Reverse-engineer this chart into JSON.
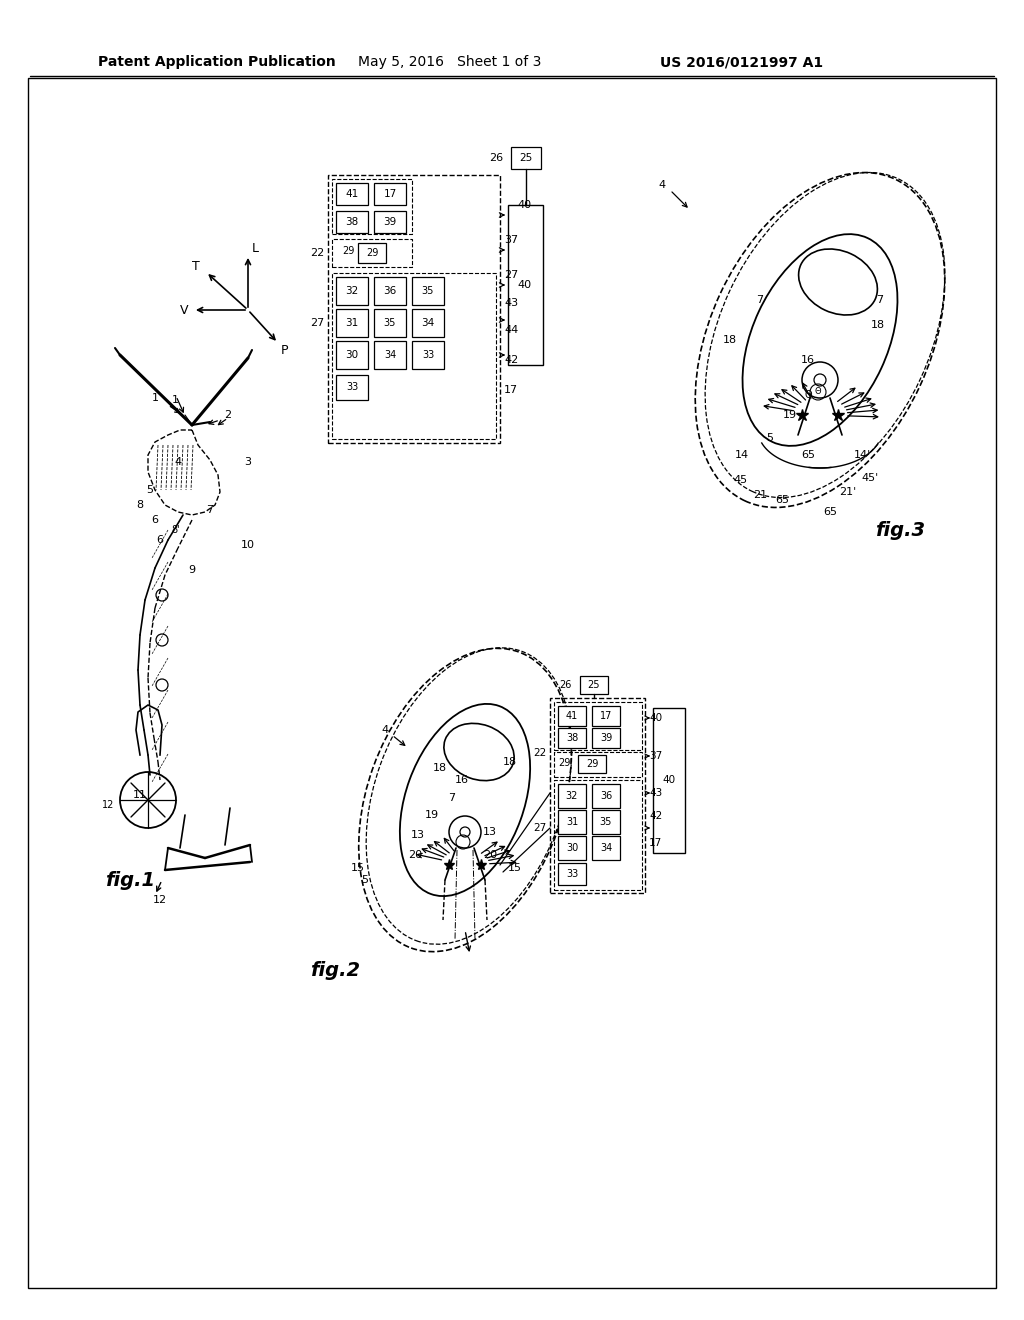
{
  "header_left": "Patent Application Publication",
  "header_center": "May 5, 2016   Sheet 1 of 3",
  "header_right": "US 2016/0121997 A1",
  "bg": "#ffffff"
}
